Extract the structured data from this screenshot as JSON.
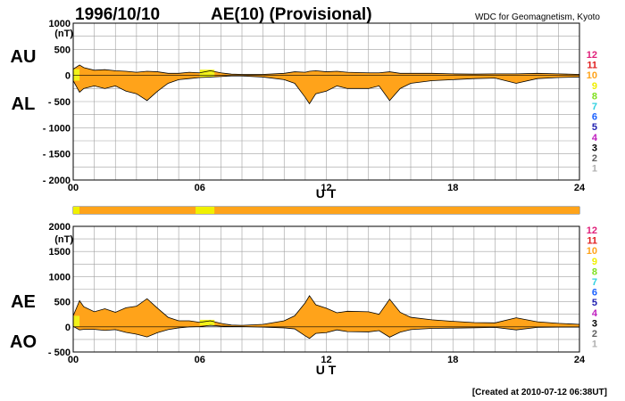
{
  "header": {
    "date": "1996/10/10",
    "title": "AE(10) (Provisional)",
    "source": "WDC for Geomagnetism, Kyoto"
  },
  "footer": {
    "created": "[Created at 2010-07-12 06:38UT]"
  },
  "colors": {
    "fill": "#ffa31a",
    "early_fill": "#f2f21a",
    "grid": "#a0a0a0",
    "bar_bg": "#ffa31a",
    "bar_highlight": "#f8f20a"
  },
  "chart_data": [
    {
      "type": "area",
      "title": "AU / AL",
      "xlabel": "U T",
      "ylabel": "(nT)",
      "series_labels": [
        "AU",
        "AL"
      ],
      "xlim": [
        0,
        24
      ],
      "ylim": [
        -2000,
        1000
      ],
      "xticks": [
        "00",
        "06",
        "12",
        "18",
        "24"
      ],
      "yticks": [
        {
          "value": 1000,
          "label": "1000"
        },
        {
          "value": 500,
          "label": "500"
        },
        {
          "value": 0,
          "label": "0"
        },
        {
          "value": -500,
          "label": "- 500"
        },
        {
          "value": -1000,
          "label": "- 1000"
        },
        {
          "value": -1500,
          "label": "- 1500"
        },
        {
          "value": -2000,
          "label": "- 2000"
        }
      ],
      "grid": true,
      "series": [
        {
          "name": "AU",
          "x": [
            0,
            0.3,
            0.5,
            1,
            1.5,
            2,
            2.5,
            3,
            3.5,
            4,
            4.5,
            5,
            5.5,
            6,
            6.5,
            7,
            7.5,
            8,
            9,
            10,
            10.5,
            11,
            11.2,
            11.5,
            12,
            12.5,
            13,
            14,
            14.5,
            15,
            15.5,
            16,
            17,
            18,
            19,
            20,
            21,
            22,
            23,
            24
          ],
          "values": [
            120,
            200,
            150,
            100,
            110,
            90,
            80,
            60,
            80,
            70,
            40,
            40,
            60,
            50,
            90,
            50,
            25,
            20,
            20,
            40,
            70,
            60,
            80,
            90,
            70,
            80,
            60,
            50,
            50,
            70,
            40,
            40,
            40,
            30,
            25,
            30,
            30,
            40,
            30,
            20
          ]
        },
        {
          "name": "AL",
          "x": [
            0,
            0.3,
            0.5,
            1,
            1.5,
            2,
            2.5,
            3,
            3.5,
            4,
            4.5,
            5,
            5.5,
            6,
            6.5,
            7,
            7.5,
            8,
            9,
            10,
            10.5,
            11,
            11.2,
            11.5,
            12,
            12.5,
            13,
            14,
            14.5,
            15,
            15.5,
            16,
            17,
            18,
            19,
            20,
            21,
            22,
            23,
            24
          ],
          "values": [
            -100,
            -320,
            -250,
            -200,
            -250,
            -200,
            -300,
            -350,
            -480,
            -300,
            -150,
            -80,
            -60,
            -40,
            -30,
            -20,
            -10,
            -10,
            -30,
            -80,
            -150,
            -420,
            -540,
            -350,
            -300,
            -200,
            -250,
            -250,
            -200,
            -480,
            -250,
            -150,
            -100,
            -80,
            -60,
            -50,
            -150,
            -60,
            -40,
            -30
          ]
        }
      ]
    },
    {
      "type": "area",
      "title": "AE / AO",
      "xlabel": "U T",
      "ylabel": "(nT)",
      "series_labels": [
        "AE",
        "AO"
      ],
      "xlim": [
        0,
        24
      ],
      "ylim": [
        -500,
        2000
      ],
      "xticks": [
        "00",
        "06",
        "12",
        "18",
        "24"
      ],
      "yticks": [
        {
          "value": 2000,
          "label": "2000"
        },
        {
          "value": 1500,
          "label": "1500"
        },
        {
          "value": 1000,
          "label": "1000"
        },
        {
          "value": 500,
          "label": "500"
        },
        {
          "value": 0,
          "label": "0"
        },
        {
          "value": -500,
          "label": "- 500"
        }
      ],
      "grid": true,
      "series": [
        {
          "name": "AE",
          "x": [
            0,
            0.3,
            0.5,
            1,
            1.5,
            2,
            2.5,
            3,
            3.5,
            4,
            4.5,
            5,
            5.5,
            6,
            6.5,
            7,
            7.5,
            8,
            9,
            10,
            10.5,
            11,
            11.2,
            11.5,
            12,
            12.5,
            13,
            14,
            14.5,
            15,
            15.5,
            16,
            17,
            18,
            19,
            20,
            21,
            22,
            23,
            24
          ],
          "values": [
            220,
            520,
            400,
            300,
            360,
            290,
            380,
            410,
            560,
            370,
            190,
            120,
            120,
            90,
            120,
            70,
            35,
            30,
            50,
            120,
            220,
            480,
            620,
            440,
            370,
            280,
            310,
            300,
            250,
            550,
            290,
            190,
            140,
            110,
            85,
            80,
            180,
            100,
            70,
            50
          ]
        },
        {
          "name": "AO",
          "x": [
            0,
            0.3,
            0.5,
            1,
            1.5,
            2,
            2.5,
            3,
            3.5,
            4,
            4.5,
            5,
            5.5,
            6,
            6.5,
            7,
            7.5,
            8,
            9,
            10,
            10.5,
            11,
            11.2,
            11.5,
            12,
            12.5,
            13,
            14,
            14.5,
            15,
            15.5,
            16,
            17,
            18,
            19,
            20,
            21,
            22,
            23,
            24
          ],
          "values": [
            10,
            -60,
            -50,
            -50,
            -70,
            -55,
            -110,
            -145,
            -200,
            -115,
            -55,
            -20,
            0,
            5,
            30,
            15,
            8,
            5,
            -5,
            -20,
            -40,
            -180,
            -230,
            -130,
            -115,
            -60,
            -95,
            -100,
            -75,
            -205,
            -105,
            -55,
            -30,
            -25,
            -18,
            -10,
            -60,
            -10,
            -5,
            -5
          ]
        }
      ]
    }
  ],
  "level_legend": [
    {
      "label": "12",
      "color": "#e0207a"
    },
    {
      "label": "11",
      "color": "#e01e1e"
    },
    {
      "label": "10",
      "color": "#ffa31a"
    },
    {
      "label": "9",
      "color": "#f0f000"
    },
    {
      "label": "8",
      "color": "#80e020"
    },
    {
      "label": "7",
      "color": "#30d0e0"
    },
    {
      "label": "6",
      "color": "#1a60ff"
    },
    {
      "label": "5",
      "color": "#2020b0"
    },
    {
      "label": "4",
      "color": "#c020c0"
    },
    {
      "label": "3",
      "color": "#000000"
    },
    {
      "label": "2",
      "color": "#606060"
    },
    {
      "label": "1",
      "color": "#b0b0b0"
    }
  ],
  "station_bar": {
    "segments": [
      {
        "start": 0,
        "end": 0.3,
        "level": "9"
      },
      {
        "start": 0.3,
        "end": 5.8,
        "level": "10"
      },
      {
        "start": 5.8,
        "end": 6.7,
        "level": "9"
      },
      {
        "start": 6.7,
        "end": 24,
        "level": "10"
      }
    ]
  }
}
